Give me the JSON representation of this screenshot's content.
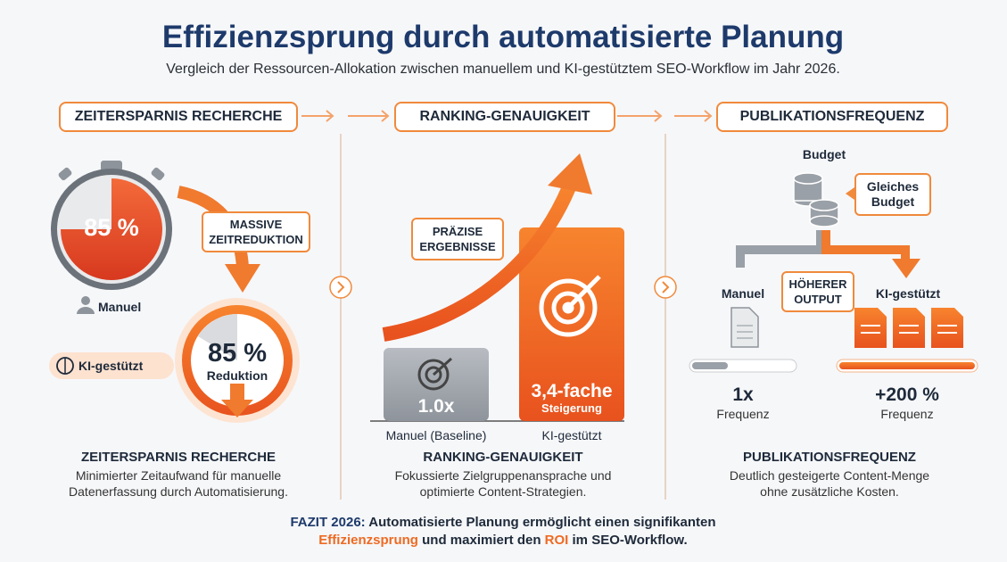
{
  "header": {
    "title": "Effizienzsprung durch automatisierte Planung",
    "subtitle": "Vergleich der Ressourcen-Allokation zwischen manuellem und KI-gestütztem SEO-Workflow im Jahr 2026."
  },
  "panels": [
    {
      "heading": "ZEITERSPARNIS RECHERCHE",
      "stopwatch_value": "85 %",
      "callout": [
        "MASSIVE",
        "ZEITREDUKTION"
      ],
      "manual_label": "Manuel",
      "ai_label": "KI-gestützt",
      "result_value": "85 %",
      "result_label": "Reduktion",
      "footer_title": "ZEITERSPARNIS RECHERCHE",
      "footer_text": [
        "Minimierter Zeitaufwand für manuelle",
        "Datenerfassung durch Automatisierung."
      ]
    },
    {
      "heading": "RANKING-GENAUIGKEIT",
      "callout": [
        "PRÄZISE",
        "ERGEBNISSE"
      ],
      "baseline_value": "1.0x",
      "baseline_label": "Manuel (Baseline)",
      "ai_value": "3,4-fache",
      "ai_value_label": "Steigerung",
      "ai_label": "KI-gestützt",
      "footer_title": "RANKING-GENAUIGKEIT",
      "footer_text": [
        "Fokussierte Zielgruppenansprache und",
        "optimierte Content-Strategien."
      ]
    },
    {
      "heading": "PUBLIKATIONSFREQUENZ",
      "budget_label": "Budget",
      "budget_callout": [
        "Gleiches",
        "Budget"
      ],
      "manual_label": "Manuel",
      "output_callout": [
        "HÖHERER",
        "OUTPUT"
      ],
      "ai_label": "KI-gestützt",
      "manual_value": "1x",
      "manual_unit": "Frequenz",
      "ai_value": "+200 %",
      "ai_unit": "Frequenz",
      "footer_title": "PUBLIKATIONSFREQUENZ",
      "footer_text": [
        "Deutlich gesteigerte Content-Menge",
        "ohne zusätzliche Kosten."
      ]
    }
  ],
  "conclusion": {
    "lead": "FAZIT 2026:",
    "line1": "Automatisierte Planung ermöglicht einen signifikanten",
    "highlight1": "Effizienzsprung",
    "mid": "und maximiert den",
    "highlight2": "ROI",
    "tail": "im SEO-Workflow."
  }
}
